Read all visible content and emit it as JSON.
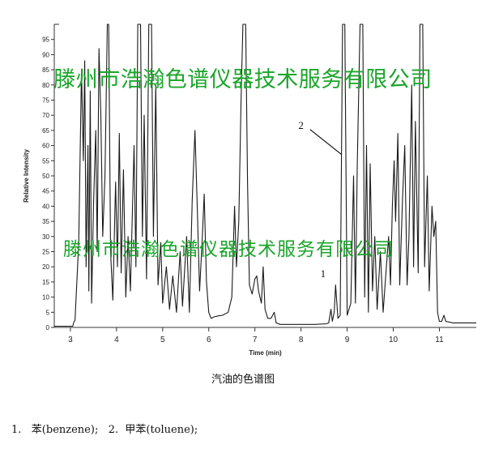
{
  "chart_data": {
    "type": "line",
    "title": "",
    "xlabel": "Time (min)",
    "ylabel": "Relative Intensity",
    "xlim": [
      2.65,
      11.8
    ],
    "ylim": [
      0,
      100
    ],
    "x_ticks": [
      3,
      4,
      5,
      6,
      7,
      8,
      9,
      10,
      11
    ],
    "y_ticks": [
      0,
      5,
      10,
      15,
      20,
      25,
      30,
      35,
      40,
      45,
      50,
      55,
      60,
      65,
      70,
      75,
      80,
      85,
      90,
      95
    ],
    "series": [
      {
        "points": [
          [
            2.65,
            0.4
          ],
          [
            3.0,
            0.4
          ],
          [
            3.05,
            0.4
          ],
          [
            3.08,
            2
          ],
          [
            3.1,
            2.3
          ],
          [
            3.18,
            28
          ],
          [
            3.24,
            85
          ],
          [
            3.28,
            55
          ],
          [
            3.31,
            88
          ],
          [
            3.34,
            20
          ],
          [
            3.38,
            60
          ],
          [
            3.4,
            12
          ],
          [
            3.43,
            78
          ],
          [
            3.46,
            8
          ],
          [
            3.5,
            40
          ],
          [
            3.55,
            65
          ],
          [
            3.58,
            25
          ],
          [
            3.62,
            92
          ],
          [
            3.66,
            70
          ],
          [
            3.7,
            30
          ],
          [
            3.75,
            50
          ],
          [
            3.8,
            100
          ],
          [
            3.83,
            100
          ],
          [
            3.87,
            25
          ],
          [
            3.92,
            9
          ],
          [
            3.98,
            48
          ],
          [
            4.02,
            20
          ],
          [
            4.06,
            64
          ],
          [
            4.1,
            18
          ],
          [
            4.15,
            52
          ],
          [
            4.2,
            10
          ],
          [
            4.25,
            30
          ],
          [
            4.3,
            12
          ],
          [
            4.38,
            60
          ],
          [
            4.42,
            20
          ],
          [
            4.46,
            100
          ],
          [
            4.52,
            100
          ],
          [
            4.56,
            30
          ],
          [
            4.6,
            70
          ],
          [
            4.65,
            16
          ],
          [
            4.7,
            100
          ],
          [
            4.76,
            100
          ],
          [
            4.8,
            30
          ],
          [
            4.85,
            80
          ],
          [
            4.9,
            14
          ],
          [
            4.96,
            28
          ],
          [
            5.0,
            8
          ],
          [
            5.08,
            20
          ],
          [
            5.15,
            6
          ],
          [
            5.22,
            17
          ],
          [
            5.3,
            5
          ],
          [
            5.38,
            25
          ],
          [
            5.43,
            7
          ],
          [
            5.52,
            30
          ],
          [
            5.58,
            5
          ],
          [
            5.64,
            42
          ],
          [
            5.7,
            65
          ],
          [
            5.75,
            40
          ],
          [
            5.8,
            12
          ],
          [
            5.86,
            30
          ],
          [
            5.9,
            44
          ],
          [
            5.95,
            15
          ],
          [
            6.0,
            5
          ],
          [
            6.05,
            3
          ],
          [
            6.12,
            3.5
          ],
          [
            6.2,
            3.8
          ],
          [
            6.3,
            4
          ],
          [
            6.42,
            5
          ],
          [
            6.5,
            10
          ],
          [
            6.56,
            40
          ],
          [
            6.6,
            20
          ],
          [
            6.65,
            35
          ],
          [
            6.7,
            75
          ],
          [
            6.74,
            100
          ],
          [
            6.8,
            100
          ],
          [
            6.84,
            48
          ],
          [
            6.88,
            14
          ],
          [
            6.94,
            11
          ],
          [
            7.0,
            16
          ],
          [
            7.04,
            17
          ],
          [
            7.08,
            12
          ],
          [
            7.14,
            8
          ],
          [
            7.18,
            20
          ],
          [
            7.22,
            6
          ],
          [
            7.28,
            3
          ],
          [
            7.35,
            3
          ],
          [
            7.42,
            5
          ],
          [
            7.46,
            1.5
          ],
          [
            7.55,
            1
          ],
          [
            7.7,
            1
          ],
          [
            8.3,
            1
          ],
          [
            8.55,
            1.2
          ],
          [
            8.6,
            1.5
          ],
          [
            8.65,
            6
          ],
          [
            8.68,
            2
          ],
          [
            8.72,
            5
          ],
          [
            8.75,
            14
          ],
          [
            8.8,
            3
          ],
          [
            8.85,
            4
          ],
          [
            8.9,
            100
          ],
          [
            8.95,
            100
          ],
          [
            9.0,
            4
          ],
          [
            9.08,
            8
          ],
          [
            9.14,
            50
          ],
          [
            9.18,
            8
          ],
          [
            9.22,
            54
          ],
          [
            9.28,
            100
          ],
          [
            9.34,
            100
          ],
          [
            9.38,
            10
          ],
          [
            9.42,
            60
          ],
          [
            9.46,
            5
          ],
          [
            9.5,
            54
          ],
          [
            9.55,
            12
          ],
          [
            9.6,
            30
          ],
          [
            9.65,
            6
          ],
          [
            9.72,
            25
          ],
          [
            9.78,
            5
          ],
          [
            9.85,
            20
          ],
          [
            9.9,
            30
          ],
          [
            9.94,
            14
          ],
          [
            9.98,
            40
          ],
          [
            10.02,
            55
          ],
          [
            10.05,
            35
          ],
          [
            10.1,
            64
          ],
          [
            10.14,
            14
          ],
          [
            10.2,
            42
          ],
          [
            10.25,
            60
          ],
          [
            10.3,
            14
          ],
          [
            10.34,
            30
          ],
          [
            10.4,
            80
          ],
          [
            10.44,
            20
          ],
          [
            10.48,
            68
          ],
          [
            10.54,
            18
          ],
          [
            10.58,
            100
          ],
          [
            10.64,
            100
          ],
          [
            10.68,
            20
          ],
          [
            10.74,
            50
          ],
          [
            10.78,
            12
          ],
          [
            10.84,
            40
          ],
          [
            10.88,
            30
          ],
          [
            10.92,
            35
          ],
          [
            10.96,
            5
          ],
          [
            11.0,
            2
          ],
          [
            11.05,
            2
          ],
          [
            11.1,
            4
          ],
          [
            11.14,
            2
          ],
          [
            11.3,
            1.5
          ],
          [
            11.8,
            1.5
          ]
        ]
      }
    ],
    "annotations": [
      {
        "text": "2",
        "x": 8.9,
        "y": 57
      },
      {
        "text": "1",
        "x": 8.64,
        "y": 16
      }
    ]
  },
  "watermarks": [
    "滕州市浩瀚色谱仪器技术服务有限公司",
    "滕州市浩瀚色谱仪器技术服务有限公司"
  ],
  "caption": "汽油的色谱图",
  "legend_text": "1.   苯(benzene);   2.  甲苯(toluene);"
}
